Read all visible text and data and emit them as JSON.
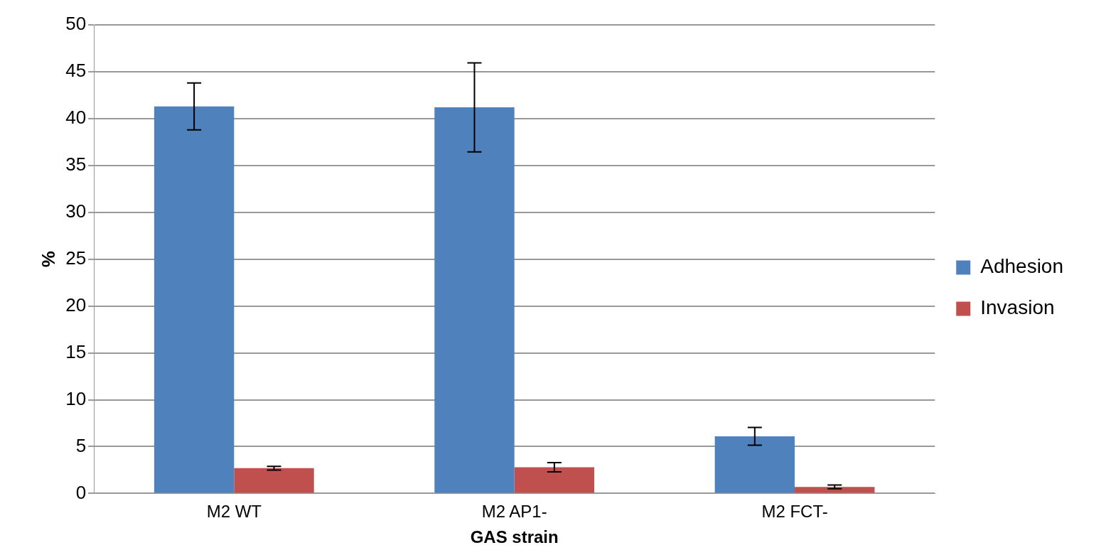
{
  "chart_data": {
    "type": "bar",
    "xlabel": "GAS strain",
    "ylabel": "%",
    "categories": [
      "M2 WT",
      "M2 AP1-",
      "M2 FCT-"
    ],
    "series": [
      {
        "name": "Adhesion",
        "color": "#4f81bd",
        "values": [
          41.3,
          41.2,
          6.1
        ],
        "errors": [
          2.5,
          4.75,
          0.95
        ]
      },
      {
        "name": "Invasion",
        "color": "#c0504d",
        "values": [
          2.7,
          2.8,
          0.7
        ],
        "errors": [
          0.2,
          0.5,
          0.2
        ]
      }
    ],
    "ylim": [
      0,
      50
    ],
    "yticks": [
      0,
      5,
      10,
      15,
      20,
      25,
      30,
      35,
      40,
      45,
      50
    ],
    "grid": "y",
    "legend": "right"
  }
}
